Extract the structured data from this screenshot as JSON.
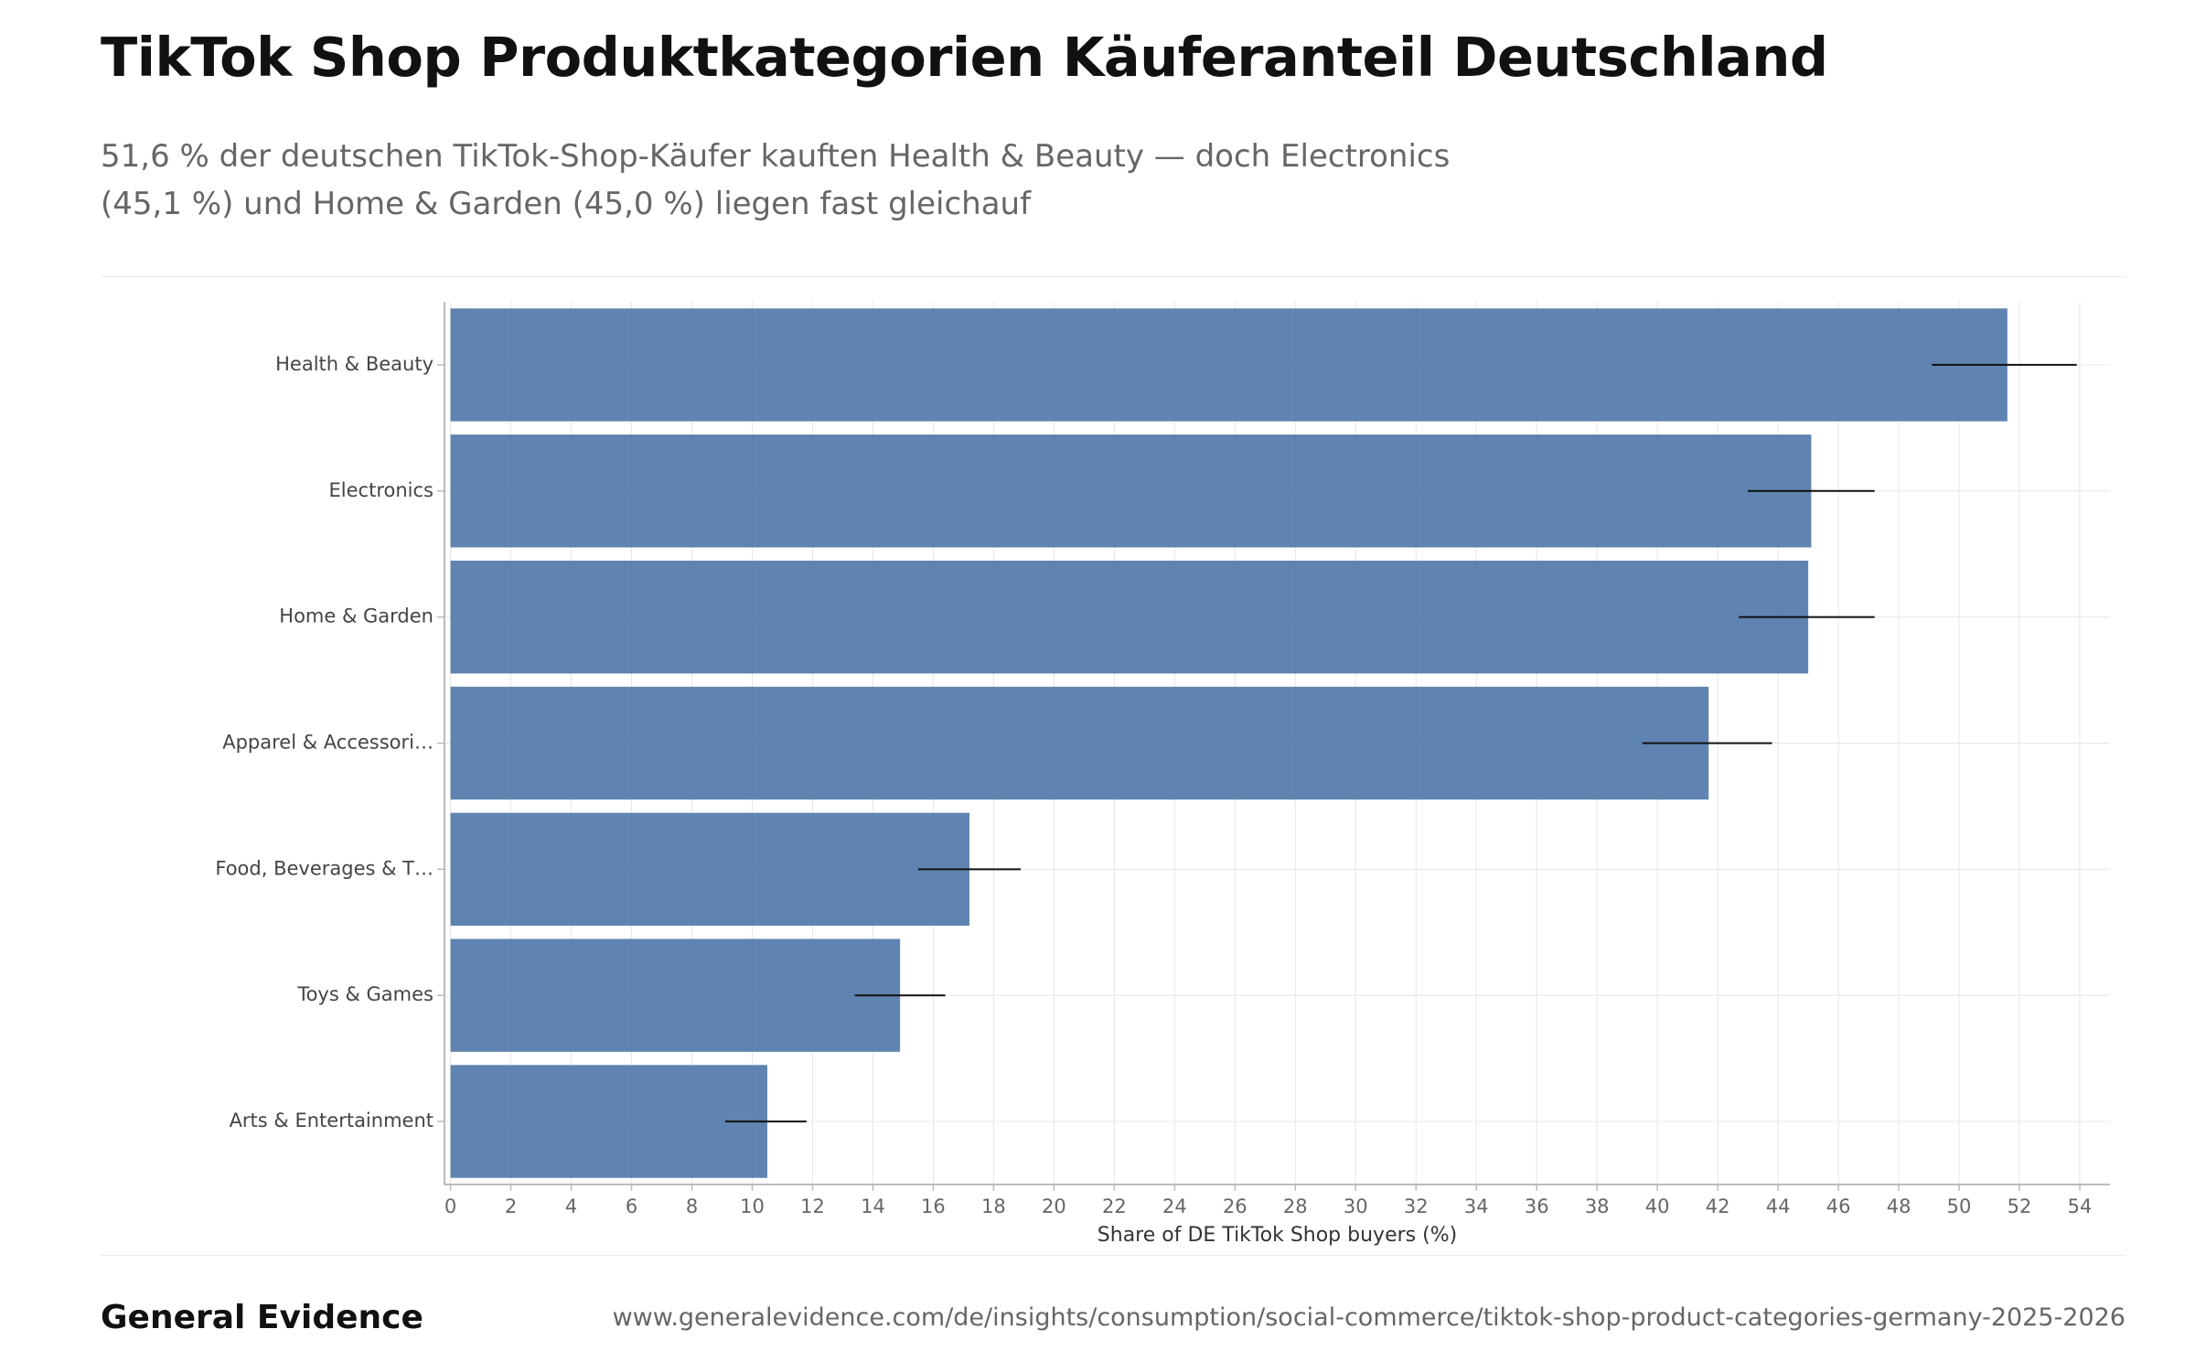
{
  "header": {
    "title": "TikTok Shop Produktkategorien Käuferanteil Deutschland",
    "subtitle_line1": "51,6 % der deutschen TikTok-Shop-Käufer kauften Health & Beauty — doch Electronics",
    "subtitle_line2": "(45,1 %) und Home & Garden (45,0 %) liegen fast gleichauf"
  },
  "footer": {
    "brand": "General Evidence",
    "source": "www.generalevidence.com/de/insights/consumption/social-commerce/tiktok-shop-product-categories-germany-2025-2026"
  },
  "chart_data": {
    "type": "bar",
    "orientation": "horizontal",
    "categories": [
      "Health & Beauty",
      "Electronics",
      "Home & Garden",
      "Apparel & Accessori…",
      "Food, Beverages & T…",
      "Toys & Games",
      "Arts & Entertainment"
    ],
    "values": [
      51.6,
      45.1,
      45.0,
      41.7,
      17.2,
      14.9,
      10.5
    ],
    "error_low": [
      49.1,
      43.0,
      42.7,
      39.5,
      15.5,
      13.4,
      9.1
    ],
    "error_high": [
      53.9,
      47.2,
      47.2,
      43.8,
      18.9,
      16.4,
      11.8
    ],
    "xlabel": "Share of DE TikTok Shop buyers (%)",
    "ylabel": "",
    "xlim": [
      -0.2,
      55
    ],
    "xticks": [
      0,
      2,
      4,
      6,
      8,
      10,
      12,
      14,
      16,
      18,
      20,
      22,
      24,
      26,
      28,
      30,
      32,
      34,
      36,
      38,
      40,
      42,
      44,
      46,
      48,
      50,
      52,
      54
    ],
    "grid": true,
    "legend": "none",
    "colors": {
      "bar": "#4e77a8",
      "errorbar": "#111111",
      "grid": "#e6e6e6",
      "axis": "#bbbbbb",
      "tick_text": "#666666",
      "label_text": "#444444"
    }
  }
}
